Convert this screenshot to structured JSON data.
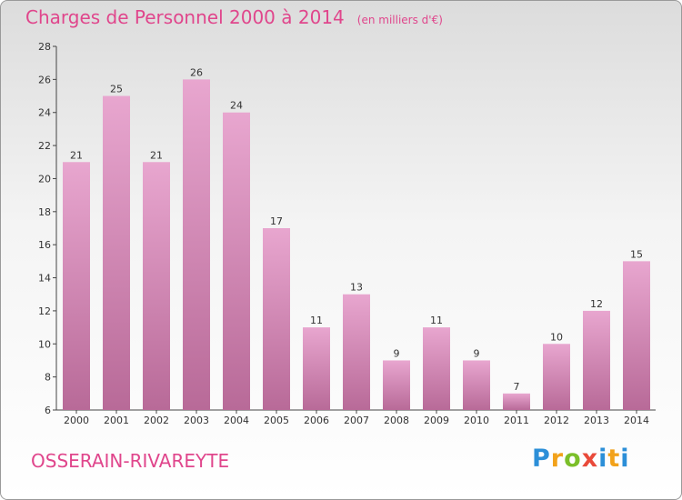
{
  "header": {
    "title": "Charges de Personnel 2000 à 2014",
    "unit": "(en milliers d'€)"
  },
  "footer": {
    "commune": "OSSERAIN-RIVAREYTE",
    "logo": "Proxiti"
  },
  "colors": {
    "title": "#e0468c",
    "bar_top": "#e8a6cf",
    "bar_bottom": "#b86a98"
  },
  "chart_data": {
    "type": "bar",
    "categories": [
      "2000",
      "2001",
      "2002",
      "2003",
      "2004",
      "2005",
      "2006",
      "2007",
      "2008",
      "2009",
      "2010",
      "2011",
      "2012",
      "2013",
      "2014"
    ],
    "values": [
      21,
      25,
      21,
      26,
      24,
      17,
      11,
      13,
      9,
      11,
      9,
      7,
      10,
      12,
      15
    ],
    "ylim": [
      6,
      28
    ],
    "yticks": [
      6,
      8,
      10,
      12,
      14,
      16,
      18,
      20,
      22,
      24,
      26,
      28
    ],
    "grid": false,
    "data_labels": true
  }
}
